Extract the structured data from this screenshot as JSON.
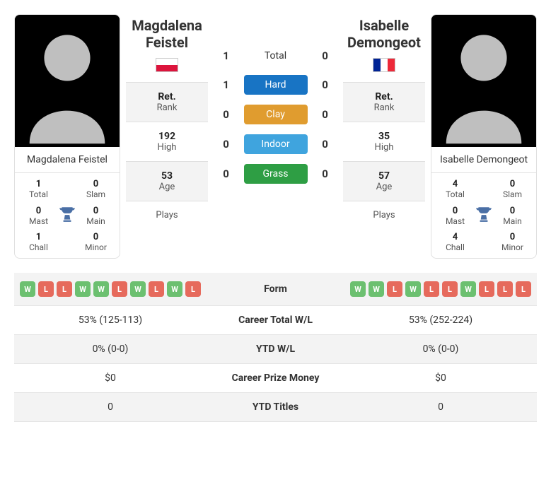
{
  "player1": {
    "name": "Magdalena Feistel",
    "country": "PL",
    "titles": {
      "total": {
        "val": "1",
        "lbl": "Total"
      },
      "slam": {
        "val": "0",
        "lbl": "Slam"
      },
      "mast": {
        "val": "0",
        "lbl": "Mast"
      },
      "main": {
        "val": "0",
        "lbl": "Main"
      },
      "chall": {
        "val": "1",
        "lbl": "Chall"
      },
      "minor": {
        "val": "0",
        "lbl": "Minor"
      }
    },
    "info": {
      "rank": {
        "val": "Ret.",
        "lbl": "Rank"
      },
      "high": {
        "val": "192",
        "lbl": "High"
      },
      "age": {
        "val": "53",
        "lbl": "Age"
      },
      "plays": {
        "val": "",
        "lbl": "Plays"
      }
    }
  },
  "player2": {
    "name": "Isabelle Demongeot",
    "country": "FR",
    "titles": {
      "total": {
        "val": "4",
        "lbl": "Total"
      },
      "slam": {
        "val": "0",
        "lbl": "Slam"
      },
      "mast": {
        "val": "0",
        "lbl": "Mast"
      },
      "main": {
        "val": "0",
        "lbl": "Main"
      },
      "chall": {
        "val": "4",
        "lbl": "Chall"
      },
      "minor": {
        "val": "0",
        "lbl": "Minor"
      }
    },
    "info": {
      "rank": {
        "val": "Ret.",
        "lbl": "Rank"
      },
      "high": {
        "val": "35",
        "lbl": "High"
      },
      "age": {
        "val": "57",
        "lbl": "Age"
      },
      "plays": {
        "val": "",
        "lbl": "Plays"
      }
    }
  },
  "h2h": {
    "rows": [
      {
        "p1": "1",
        "label": "Total",
        "p2": "0",
        "pill": false
      },
      {
        "p1": "1",
        "label": "Hard",
        "p2": "0",
        "pill": true,
        "color": "#1874c4"
      },
      {
        "p1": "0",
        "label": "Clay",
        "p2": "0",
        "pill": true,
        "color": "#e09c2f"
      },
      {
        "p1": "0",
        "label": "Indoor",
        "p2": "0",
        "pill": true,
        "color": "#3fa4de"
      },
      {
        "p1": "0",
        "label": "Grass",
        "p2": "0",
        "pill": true,
        "color": "#2e9e44"
      }
    ]
  },
  "comparison": {
    "rows": [
      {
        "key": "form",
        "label": "Form"
      },
      {
        "p1": "53% (125-113)",
        "label": "Career Total W/L",
        "p2": "53% (252-224)"
      },
      {
        "p1": "0% (0-0)",
        "label": "YTD W/L",
        "p2": "0% (0-0)"
      },
      {
        "p1": "$0",
        "label": "Career Prize Money",
        "p2": "$0"
      },
      {
        "p1": "0",
        "label": "YTD Titles",
        "p2": "0"
      }
    ]
  },
  "form": {
    "p1": [
      "W",
      "L",
      "L",
      "W",
      "W",
      "L",
      "W",
      "L",
      "W",
      "L"
    ],
    "p2": [
      "W",
      "W",
      "L",
      "W",
      "L",
      "L",
      "W",
      "L",
      "L",
      "L"
    ],
    "colors": {
      "W": "#6cc070",
      "L": "#e66a5c"
    }
  }
}
